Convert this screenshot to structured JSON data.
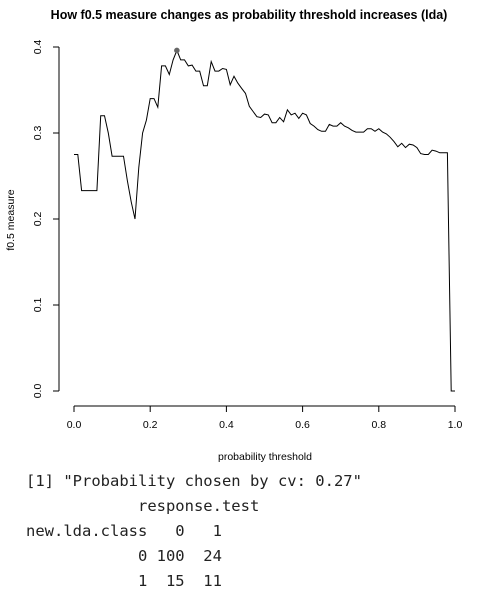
{
  "chart_data": {
    "type": "line",
    "title": "How f0.5 measure changes as probability threshold increases (lda)",
    "xlabel": "probability threshold",
    "ylabel": "f0.5 measure",
    "xlim": [
      0.0,
      1.0
    ],
    "ylim": [
      0.0,
      0.4
    ],
    "x_ticks": [
      "0.0",
      "0.2",
      "0.4",
      "0.6",
      "0.8",
      "1.0"
    ],
    "y_ticks": [
      "0.0",
      "0.1",
      "0.2",
      "0.3",
      "0.4"
    ],
    "grid": false,
    "series": [
      {
        "color": "#000000",
        "points": [
          [
            0.0,
            0.275
          ],
          [
            0.01,
            0.275
          ],
          [
            0.02,
            0.233
          ],
          [
            0.03,
            0.233
          ],
          [
            0.04,
            0.233
          ],
          [
            0.06,
            0.233
          ],
          [
            0.07,
            0.32
          ],
          [
            0.08,
            0.32
          ],
          [
            0.09,
            0.3
          ],
          [
            0.1,
            0.273
          ],
          [
            0.11,
            0.273
          ],
          [
            0.12,
            0.273
          ],
          [
            0.13,
            0.273
          ],
          [
            0.14,
            0.245
          ],
          [
            0.15,
            0.22
          ],
          [
            0.16,
            0.2
          ],
          [
            0.17,
            0.26
          ],
          [
            0.18,
            0.3
          ],
          [
            0.19,
            0.315
          ],
          [
            0.2,
            0.34
          ],
          [
            0.21,
            0.34
          ],
          [
            0.22,
            0.33
          ],
          [
            0.23,
            0.378
          ],
          [
            0.24,
            0.378
          ],
          [
            0.25,
            0.368
          ],
          [
            0.26,
            0.385
          ],
          [
            0.27,
            0.396
          ],
          [
            0.28,
            0.385
          ],
          [
            0.29,
            0.385
          ],
          [
            0.3,
            0.378
          ],
          [
            0.31,
            0.379
          ],
          [
            0.32,
            0.372
          ],
          [
            0.33,
            0.372
          ],
          [
            0.34,
            0.355
          ],
          [
            0.35,
            0.355
          ],
          [
            0.36,
            0.383
          ],
          [
            0.37,
            0.372
          ],
          [
            0.38,
            0.372
          ],
          [
            0.39,
            0.375
          ],
          [
            0.4,
            0.374
          ],
          [
            0.41,
            0.356
          ],
          [
            0.42,
            0.366
          ],
          [
            0.43,
            0.358
          ],
          [
            0.44,
            0.352
          ],
          [
            0.45,
            0.346
          ],
          [
            0.46,
            0.331
          ],
          [
            0.47,
            0.325
          ],
          [
            0.48,
            0.319
          ],
          [
            0.49,
            0.318
          ],
          [
            0.5,
            0.322
          ],
          [
            0.51,
            0.321
          ],
          [
            0.52,
            0.312
          ],
          [
            0.53,
            0.312
          ],
          [
            0.54,
            0.318
          ],
          [
            0.55,
            0.313
          ],
          [
            0.56,
            0.327
          ],
          [
            0.57,
            0.321
          ],
          [
            0.58,
            0.323
          ],
          [
            0.59,
            0.317
          ],
          [
            0.6,
            0.323
          ],
          [
            0.61,
            0.321
          ],
          [
            0.62,
            0.311
          ],
          [
            0.63,
            0.308
          ],
          [
            0.64,
            0.304
          ],
          [
            0.65,
            0.302
          ],
          [
            0.66,
            0.302
          ],
          [
            0.67,
            0.31
          ],
          [
            0.68,
            0.308
          ],
          [
            0.69,
            0.308
          ],
          [
            0.7,
            0.312
          ],
          [
            0.71,
            0.308
          ],
          [
            0.72,
            0.306
          ],
          [
            0.73,
            0.303
          ],
          [
            0.74,
            0.301
          ],
          [
            0.75,
            0.301
          ],
          [
            0.76,
            0.301
          ],
          [
            0.77,
            0.305
          ],
          [
            0.78,
            0.305
          ],
          [
            0.79,
            0.302
          ],
          [
            0.8,
            0.305
          ],
          [
            0.81,
            0.301
          ],
          [
            0.82,
            0.299
          ],
          [
            0.83,
            0.295
          ],
          [
            0.84,
            0.29
          ],
          [
            0.85,
            0.284
          ],
          [
            0.86,
            0.288
          ],
          [
            0.87,
            0.283
          ],
          [
            0.88,
            0.287
          ],
          [
            0.89,
            0.286
          ],
          [
            0.9,
            0.283
          ],
          [
            0.91,
            0.276
          ],
          [
            0.92,
            0.275
          ],
          [
            0.93,
            0.275
          ],
          [
            0.94,
            0.28
          ],
          [
            0.95,
            0.279
          ],
          [
            0.96,
            0.277
          ],
          [
            0.97,
            0.277
          ],
          [
            0.98,
            0.277
          ],
          [
            0.99,
            0.0
          ],
          [
            1.0,
            0.0
          ]
        ]
      }
    ],
    "highlight_point": {
      "x": 0.27,
      "y": 0.396,
      "color": "#666666"
    }
  },
  "console": {
    "line1": "[1] \"Probability chosen by cv: 0.27\"",
    "line2": "            response.test",
    "line3": "new.lda.class   0   1",
    "line4": "            0 100  24",
    "line5": "            1  15  11"
  }
}
